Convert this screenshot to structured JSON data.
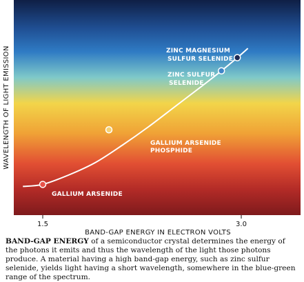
{
  "chart_data": {
    "type": "line",
    "xlabel": "BAND-GAP ENERGY IN ELECTRON VOLTS",
    "ylabel": "WAVELENGTH OF LIGHT EMISSION",
    "x_ticks": [
      "1.5",
      "3.0"
    ],
    "xlim": [
      1.3,
      3.25
    ],
    "ylim": [
      0,
      1
    ],
    "grid": false,
    "curve": {
      "x": [
        1.35,
        1.5,
        1.7,
        1.9,
        2.1,
        2.3,
        2.5,
        2.7,
        2.85,
        2.97,
        3.05
      ],
      "y": [
        0.065,
        0.078,
        0.14,
        0.22,
        0.33,
        0.45,
        0.58,
        0.71,
        0.81,
        0.895,
        0.955
      ]
    },
    "points": [
      {
        "label": "GALLIUM ARSENIDE",
        "x": 1.5,
        "y": 0.078,
        "color": "#e8524a"
      },
      {
        "label": "GALLIUM ARSENIDE PHOSPHIDE",
        "x": 2.0,
        "y": 0.43,
        "color": "#f5d276"
      },
      {
        "label": "ZINC SULFUR SELENIDE",
        "x": 2.85,
        "y": 0.81,
        "color": "#3f86c8"
      },
      {
        "label": "ZINC MAGNESIUM SULFUR SELENIDE",
        "x": 2.97,
        "y": 0.895,
        "color": "#1c2a55"
      }
    ],
    "background_colors": [
      "#0f1f45",
      "#2f7bc4",
      "#7fc9c9",
      "#f2d54a",
      "#f0a236",
      "#e24f33",
      "#7e1a1c"
    ]
  },
  "caption": {
    "lead": "BAND-GAP ENERGY",
    "text": " of a semiconductor crystal determines the energy of the photons it emits and thus the wavelength of the light those photons produce. A material having a high band-gap energy, such as zinc sulfur selenide, yields light having a short wavelength, somewhere in the blue-green range of the spectrum."
  }
}
